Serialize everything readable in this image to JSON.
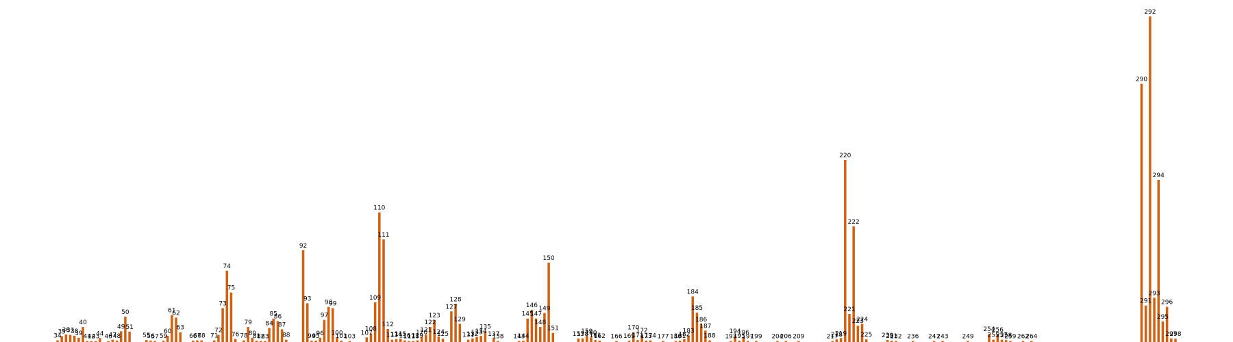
{
  "chart_data": {
    "type": "bar",
    "bar_color": "#d35f0f",
    "background": "#ffffff",
    "axes_visible": false,
    "grid": false,
    "xlim": [
      34,
      298
    ],
    "ylim": [
      0,
      100
    ],
    "title": "",
    "xlabel": "",
    "ylabel": "",
    "points": [
      {
        "x": 34,
        "label": "34",
        "y": 0.5
      },
      {
        "x": 35,
        "label": "35",
        "y": 1.8
      },
      {
        "x": 36,
        "label": "36",
        "y": 2.3
      },
      {
        "x": 37,
        "label": "37",
        "y": 2.2
      },
      {
        "x": 38,
        "label": "38",
        "y": 1.9
      },
      {
        "x": 39,
        "label": "39",
        "y": 1.3
      },
      {
        "x": 40,
        "label": "40",
        "y": 4.6
      },
      {
        "x": 41,
        "label": "41",
        "y": 0.3
      },
      {
        "x": 42,
        "label": "42",
        "y": 0.3
      },
      {
        "x": 43,
        "label": "43",
        "y": 0.3
      },
      {
        "x": 44,
        "label": "44",
        "y": 1.2
      },
      {
        "x": 46,
        "label": "46",
        "y": 0.3
      },
      {
        "x": 47,
        "label": "47",
        "y": 0.7
      },
      {
        "x": 48,
        "label": "48",
        "y": 0.4
      },
      {
        "x": 49,
        "label": "49",
        "y": 3.3
      },
      {
        "x": 50,
        "label": "50",
        "y": 7.8
      },
      {
        "x": 51,
        "label": "51",
        "y": 3.2
      },
      {
        "x": 55,
        "label": "55",
        "y": 0.6
      },
      {
        "x": 56,
        "label": "56",
        "y": 0.4
      },
      {
        "x": 57,
        "label": "57",
        "y": 0.3
      },
      {
        "x": 59,
        "label": "59",
        "y": 0.4
      },
      {
        "x": 60,
        "label": "60",
        "y": 1.9
      },
      {
        "x": 61,
        "label": "61",
        "y": 8.3
      },
      {
        "x": 62,
        "label": "62",
        "y": 7.5
      },
      {
        "x": 63,
        "label": "63",
        "y": 3.0
      },
      {
        "x": 66,
        "label": "66",
        "y": 0.4
      },
      {
        "x": 67,
        "label": "67",
        "y": 0.5
      },
      {
        "x": 68,
        "label": "68",
        "y": 0.5
      },
      {
        "x": 71,
        "label": "71",
        "y": 0.5
      },
      {
        "x": 72,
        "label": "72",
        "y": 2.2
      },
      {
        "x": 73,
        "label": "73",
        "y": 10.4
      },
      {
        "x": 74,
        "label": "74",
        "y": 21.9
      },
      {
        "x": 75,
        "label": "75",
        "y": 15.2
      },
      {
        "x": 76,
        "label": "76",
        "y": 0.9
      },
      {
        "x": 78,
        "label": "78",
        "y": 0.5
      },
      {
        "x": 79,
        "label": "79",
        "y": 4.6
      },
      {
        "x": 80,
        "label": "80",
        "y": 1.3
      },
      {
        "x": 81,
        "label": "81",
        "y": 0.4
      },
      {
        "x": 82,
        "label": "82",
        "y": 0.3
      },
      {
        "x": 83,
        "label": "83",
        "y": 0.3
      },
      {
        "x": 84,
        "label": "84",
        "y": 4.3
      },
      {
        "x": 85,
        "label": "85",
        "y": 7.2
      },
      {
        "x": 86,
        "label": "86",
        "y": 6.4
      },
      {
        "x": 87,
        "label": "87",
        "y": 3.9
      },
      {
        "x": 88,
        "label": "88",
        "y": 0.7
      },
      {
        "x": 92,
        "label": "92",
        "y": 28.2
      },
      {
        "x": 93,
        "label": "93",
        "y": 11.9
      },
      {
        "x": 94,
        "label": "94",
        "y": 0.4
      },
      {
        "x": 95,
        "label": "95",
        "y": 0.4
      },
      {
        "x": 96,
        "label": "96",
        "y": 1.3
      },
      {
        "x": 97,
        "label": "97",
        "y": 6.8
      },
      {
        "x": 98,
        "label": "98",
        "y": 10.8
      },
      {
        "x": 99,
        "label": "99",
        "y": 10.4
      },
      {
        "x": 100,
        "label": "100",
        "y": 1.4
      },
      {
        "x": 101,
        "label": "101",
        "y": 0.4
      },
      {
        "x": 103,
        "label": "103",
        "y": 0.3
      },
      {
        "x": 107,
        "label": "107",
        "y": 1.4
      },
      {
        "x": 108,
        "label": "108",
        "y": 2.6
      },
      {
        "x": 109,
        "label": "109",
        "y": 12.2
      },
      {
        "x": 110,
        "label": "110",
        "y": 39.8
      },
      {
        "x": 111,
        "label": "111",
        "y": 31.5
      },
      {
        "x": 112,
        "label": "112",
        "y": 4.0
      },
      {
        "x": 113,
        "label": "113",
        "y": 0.7
      },
      {
        "x": 114,
        "label": "114",
        "y": 0.9
      },
      {
        "x": 115,
        "label": "115",
        "y": 1.0
      },
      {
        "x": 116,
        "label": "116",
        "y": 0.5
      },
      {
        "x": 117,
        "label": "117",
        "y": 0.3
      },
      {
        "x": 118,
        "label": "118",
        "y": 0.3
      },
      {
        "x": 119,
        "label": "119",
        "y": 0.5
      },
      {
        "x": 120,
        "label": "120",
        "y": 1.6
      },
      {
        "x": 121,
        "label": "121",
        "y": 2.3
      },
      {
        "x": 122,
        "label": "122",
        "y": 4.6
      },
      {
        "x": 123,
        "label": "123",
        "y": 6.7
      },
      {
        "x": 124,
        "label": "124",
        "y": 1.7
      },
      {
        "x": 125,
        "label": "125",
        "y": 1.0
      },
      {
        "x": 127,
        "label": "127",
        "y": 9.4
      },
      {
        "x": 128,
        "label": "128",
        "y": 11.7
      },
      {
        "x": 129,
        "label": "129",
        "y": 5.6
      },
      {
        "x": 131,
        "label": "131",
        "y": 0.7
      },
      {
        "x": 132,
        "label": "132",
        "y": 1.1
      },
      {
        "x": 133,
        "label": "133",
        "y": 1.6
      },
      {
        "x": 134,
        "label": "134",
        "y": 1.9
      },
      {
        "x": 135,
        "label": "135",
        "y": 3.3
      },
      {
        "x": 137,
        "label": "137",
        "y": 1.1
      },
      {
        "x": 138,
        "label": "138",
        "y": 0.3
      },
      {
        "x": 143,
        "label": "143",
        "y": 0.3
      },
      {
        "x": 144,
        "label": "144",
        "y": 0.4
      },
      {
        "x": 145,
        "label": "145",
        "y": 7.2
      },
      {
        "x": 146,
        "label": "146",
        "y": 9.9
      },
      {
        "x": 147,
        "label": "147",
        "y": 7.2
      },
      {
        "x": 148,
        "label": "148",
        "y": 4.6
      },
      {
        "x": 149,
        "label": "149",
        "y": 8.9
      },
      {
        "x": 150,
        "label": "150",
        "y": 24.4
      },
      {
        "x": 151,
        "label": "151",
        "y": 2.8
      },
      {
        "x": 157,
        "label": "157",
        "y": 1.1
      },
      {
        "x": 158,
        "label": "158",
        "y": 1.1
      },
      {
        "x": 159,
        "label": "159",
        "y": 1.9
      },
      {
        "x": 160,
        "label": "160",
        "y": 1.4
      },
      {
        "x": 161,
        "label": "161",
        "y": 0.6
      },
      {
        "x": 162,
        "label": "162",
        "y": 0.4
      },
      {
        "x": 166,
        "label": "166",
        "y": 0.3
      },
      {
        "x": 169,
        "label": "169",
        "y": 0.4
      },
      {
        "x": 170,
        "label": "170",
        "y": 3.0
      },
      {
        "x": 171,
        "label": "171",
        "y": 0.6
      },
      {
        "x": 172,
        "label": "172",
        "y": 2.1
      },
      {
        "x": 173,
        "label": "173",
        "y": 0.4
      },
      {
        "x": 174,
        "label": "174",
        "y": 0.5
      },
      {
        "x": 177,
        "label": "177",
        "y": 0.3
      },
      {
        "x": 180,
        "label": "180",
        "y": 0.3
      },
      {
        "x": 181,
        "label": "181",
        "y": 0.4
      },
      {
        "x": 182,
        "label": "182",
        "y": 0.9
      },
      {
        "x": 183,
        "label": "183",
        "y": 2.0
      },
      {
        "x": 184,
        "label": "184",
        "y": 14.0
      },
      {
        "x": 185,
        "label": "185",
        "y": 9.0
      },
      {
        "x": 186,
        "label": "186",
        "y": 5.5
      },
      {
        "x": 187,
        "label": "187",
        "y": 3.5
      },
      {
        "x": 188,
        "label": "188",
        "y": 0.5
      },
      {
        "x": 193,
        "label": "193",
        "y": 0.3
      },
      {
        "x": 194,
        "label": "194",
        "y": 1.9
      },
      {
        "x": 195,
        "label": "195",
        "y": 0.4
      },
      {
        "x": 196,
        "label": "196",
        "y": 1.5
      },
      {
        "x": 197,
        "label": "197",
        "y": 0.3
      },
      {
        "x": 199,
        "label": "199",
        "y": 0.3
      },
      {
        "x": 204,
        "label": "204",
        "y": 0.3
      },
      {
        "x": 206,
        "label": "206",
        "y": 0.3
      },
      {
        "x": 209,
        "label": "209",
        "y": 0.3
      },
      {
        "x": 217,
        "label": "217",
        "y": 0.3
      },
      {
        "x": 218,
        "label": "218",
        "y": 0.8
      },
      {
        "x": 219,
        "label": "219",
        "y": 1.2
      },
      {
        "x": 220,
        "label": "220",
        "y": 55.9
      },
      {
        "x": 221,
        "label": "221",
        "y": 8.6
      },
      {
        "x": 222,
        "label": "222",
        "y": 35.5
      },
      {
        "x": 223,
        "label": "223",
        "y": 5.0
      },
      {
        "x": 224,
        "label": "224",
        "y": 5.6
      },
      {
        "x": 225,
        "label": "225",
        "y": 0.8
      },
      {
        "x": 230,
        "label": "230",
        "y": 0.6
      },
      {
        "x": 231,
        "label": "231",
        "y": 0.4
      },
      {
        "x": 232,
        "label": "232",
        "y": 0.3
      },
      {
        "x": 236,
        "label": "236",
        "y": 0.3
      },
      {
        "x": 241,
        "label": "241",
        "y": 0.3
      },
      {
        "x": 243,
        "label": "243",
        "y": 0.3
      },
      {
        "x": 249,
        "label": "249",
        "y": 0.3
      },
      {
        "x": 254,
        "label": "254",
        "y": 2.5
      },
      {
        "x": 255,
        "label": "255",
        "y": 0.7
      },
      {
        "x": 256,
        "label": "256",
        "y": 2.3
      },
      {
        "x": 257,
        "label": "257",
        "y": 0.7
      },
      {
        "x": 258,
        "label": "258",
        "y": 0.6
      },
      {
        "x": 259,
        "label": "259",
        "y": 0.3
      },
      {
        "x": 262,
        "label": "262",
        "y": 0.3
      },
      {
        "x": 264,
        "label": "264",
        "y": 0.3
      },
      {
        "x": 290,
        "label": "290",
        "y": 79.3
      },
      {
        "x": 291,
        "label": "291",
        "y": 11.2
      },
      {
        "x": 292,
        "label": "292",
        "y": 100.0
      },
      {
        "x": 293,
        "label": "293",
        "y": 13.6
      },
      {
        "x": 294,
        "label": "294",
        "y": 49.8
      },
      {
        "x": 295,
        "label": "295",
        "y": 6.3
      },
      {
        "x": 296,
        "label": "296",
        "y": 10.8
      },
      {
        "x": 297,
        "label": "297",
        "y": 1.1
      },
      {
        "x": 298,
        "label": "298",
        "y": 1.0
      }
    ]
  }
}
